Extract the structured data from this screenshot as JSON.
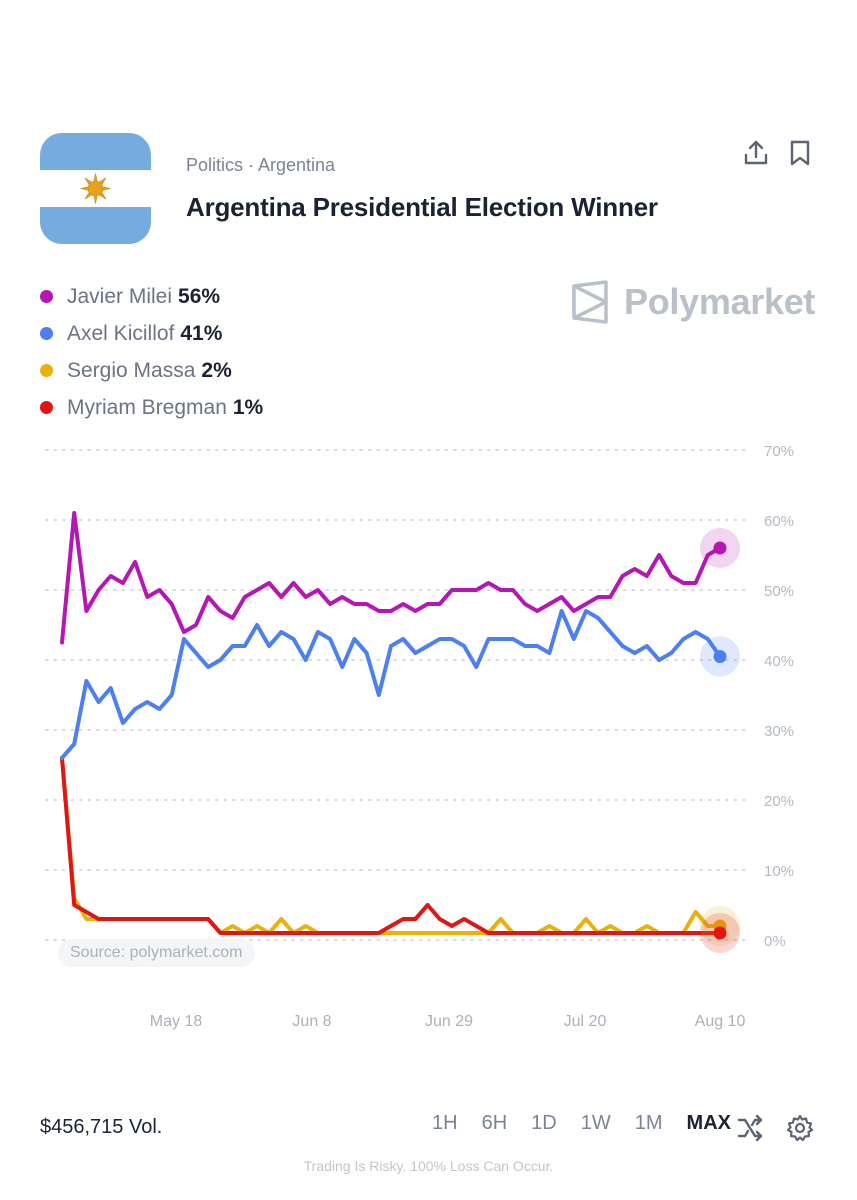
{
  "header": {
    "breadcrumb": "Politics · Argentina",
    "title": "Argentina Presidential Election Winner",
    "share_icon": "share-icon",
    "bookmark_icon": "bookmark-icon"
  },
  "brand": {
    "name": "Polymarket",
    "logo_icon": "polymarket-logo-icon"
  },
  "colors": {
    "milei": "#b517b4",
    "kicillof": "#4c7ff0",
    "massa": "#e8b10c",
    "bregman": "#e01515",
    "flag_blue": "#74acdf",
    "sun": "#e7a11a"
  },
  "legend": [
    {
      "name": "Javier Milei",
      "value": "56%",
      "color": "#b517b4"
    },
    {
      "name": "Axel Kicillof",
      "value": "41%",
      "color": "#4c7ff0"
    },
    {
      "name": "Sergio Massa",
      "value": "2%",
      "color": "#e8b10c"
    },
    {
      "name": "Myriam Bregman",
      "value": "1%",
      "color": "#e01515"
    }
  ],
  "chart_data": {
    "type": "line",
    "xlabel": "",
    "ylabel": "",
    "x_ticks": [
      "May 18",
      "Jun 8",
      "Jun 29",
      "Jul 20",
      "Aug 10"
    ],
    "x": [
      "Apr 27",
      "Apr 28",
      "Apr 29",
      "Apr 30",
      "May 1",
      "May 3",
      "May 5",
      "May 7",
      "May 9",
      "May 11",
      "May 13",
      "May 15",
      "May 17",
      "May 19",
      "May 21",
      "May 23",
      "May 25",
      "May 27",
      "May 29",
      "May 31",
      "Jun 2",
      "Jun 4",
      "Jun 6",
      "Jun 8",
      "Jun 10",
      "Jun 12",
      "Jun 14",
      "Jun 16",
      "Jun 18",
      "Jun 20",
      "Jun 22",
      "Jun 24",
      "Jun 26",
      "Jun 28",
      "Jun 30",
      "Jul 2",
      "Jul 4",
      "Jul 6",
      "Jul 8",
      "Jul 10",
      "Jul 12",
      "Jul 14",
      "Jul 16",
      "Jul 18",
      "Jul 20",
      "Jul 22",
      "Jul 24",
      "Jul 26",
      "Jul 28",
      "Jul 30",
      "Aug 1",
      "Aug 3",
      "Aug 5",
      "Aug 7",
      "Aug 9"
    ],
    "series": [
      {
        "name": "Javier Milei",
        "color": "#b517b4",
        "values": [
          42.5,
          61,
          47,
          50,
          52,
          51,
          54,
          49,
          50,
          48,
          44,
          45,
          49,
          47,
          46,
          49,
          50,
          51,
          49,
          51,
          49,
          50,
          48,
          49,
          48,
          48,
          47,
          47,
          48,
          47,
          48,
          48,
          50,
          50,
          50,
          51,
          50,
          50,
          48,
          47,
          48,
          49,
          47,
          48,
          49,
          49,
          52,
          53,
          52,
          55,
          52,
          51,
          51,
          55,
          56
        ]
      },
      {
        "name": "Axel Kicillof",
        "color": "#4c7ff0",
        "values": [
          26,
          28,
          37,
          34,
          36,
          31,
          33,
          34,
          33,
          35,
          43,
          41,
          39,
          40,
          42,
          42,
          45,
          42,
          44,
          43,
          40,
          44,
          43,
          39,
          43,
          41,
          35,
          42,
          43,
          41,
          42,
          43,
          43,
          42,
          39,
          43,
          43,
          43,
          42,
          42,
          41,
          47,
          43,
          47,
          46,
          44,
          42,
          41,
          42,
          40,
          41,
          43,
          44,
          43,
          40.5
        ]
      },
      {
        "name": "Sergio Massa",
        "color": "#e8b10c",
        "values": [
          26,
          6,
          3,
          3,
          3,
          3,
          3,
          3,
          3,
          3,
          3,
          3,
          3,
          1,
          2,
          1,
          2,
          1,
          3,
          1,
          2,
          1,
          1,
          1,
          1,
          1,
          1,
          1,
          1,
          1,
          1,
          1,
          1,
          1,
          1,
          1,
          3,
          1,
          1,
          1,
          2,
          1,
          1,
          3,
          1,
          2,
          1,
          1,
          2,
          1,
          1,
          1,
          4,
          2,
          2
        ]
      },
      {
        "name": "Myriam Bregman",
        "color": "#e01515",
        "values": [
          26,
          5,
          4,
          3,
          3,
          3,
          3,
          3,
          3,
          3,
          3,
          3,
          3,
          1,
          1,
          1,
          1,
          1,
          1,
          1,
          1,
          1,
          1,
          1,
          1,
          1,
          1,
          2,
          3,
          3,
          5,
          3,
          2,
          3,
          2,
          1,
          1,
          1,
          1,
          1,
          1,
          1,
          1,
          1,
          1,
          1,
          1,
          1,
          1,
          1,
          1,
          1,
          1,
          1,
          1
        ]
      }
    ],
    "ylim": [
      0,
      70
    ],
    "y_ticks": [
      "0%",
      "10%",
      "20%",
      "30%",
      "40%",
      "50%",
      "60%",
      "70%"
    ],
    "grid": true,
    "legend_placement": "top-left",
    "source": "Source: polymarket.com"
  },
  "footer": {
    "volume": "$456,715 Vol.",
    "ranges": [
      "1H",
      "6H",
      "1D",
      "1W",
      "1M",
      "MAX"
    ],
    "active_range": "MAX",
    "shuffle_icon": "shuffle-icon",
    "settings_icon": "gear-icon",
    "disclaimer": "Trading Is Risky. 100% Loss Can Occur."
  }
}
